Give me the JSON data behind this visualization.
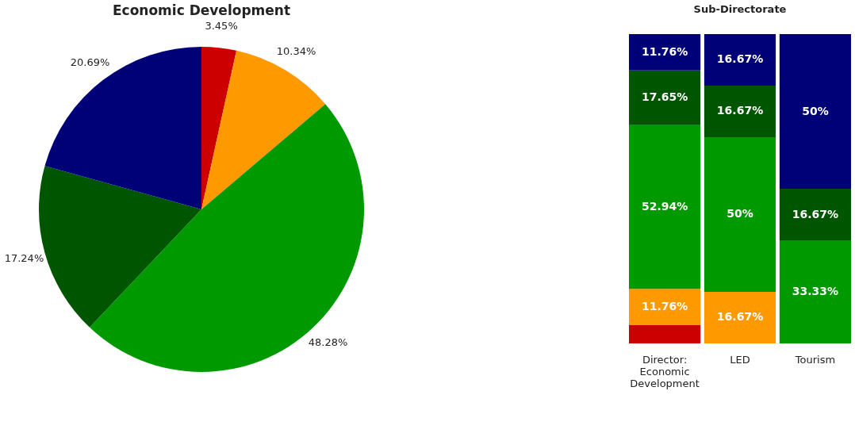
{
  "chart_data": [
    {
      "type": "pie",
      "title": "Economic Development",
      "categories": [
        null,
        null,
        null,
        null,
        null
      ],
      "values": [
        3.45,
        10.34,
        48.28,
        17.24,
        20.69
      ],
      "colors": [
        "#cc0000",
        "#ff9900",
        "#009900",
        "#005500",
        "#000077"
      ],
      "value_labels": [
        "3.45%",
        "10.34%",
        "48.28%",
        "17.24%",
        "20.69%"
      ]
    },
    {
      "type": "bar",
      "title": "Sub-Directorate",
      "categories": [
        "Director: Economic Development",
        "LED",
        "Tourism"
      ],
      "stacked": true,
      "ylim": [
        0,
        100
      ],
      "tick_labels": "x",
      "series": [
        {
          "color": "#cc0000",
          "values": [
            5.89,
            null,
            null
          ],
          "value_labels": [
            null,
            null,
            null
          ]
        },
        {
          "color": "#ff9900",
          "values": [
            11.76,
            16.67,
            null
          ],
          "value_labels": [
            "11.76%",
            "16.67%",
            null
          ]
        },
        {
          "color": "#009900",
          "values": [
            52.94,
            50,
            33.33
          ],
          "value_labels": [
            "52.94%",
            "50%",
            "33.33%"
          ]
        },
        {
          "color": "#005500",
          "values": [
            17.65,
            16.67,
            16.67
          ],
          "value_labels": [
            "17.65%",
            "16.67%",
            "16.67%"
          ]
        },
        {
          "color": "#000077",
          "values": [
            11.76,
            16.67,
            50
          ],
          "value_labels": [
            "11.76%",
            "16.67%",
            "50%"
          ]
        }
      ]
    }
  ]
}
